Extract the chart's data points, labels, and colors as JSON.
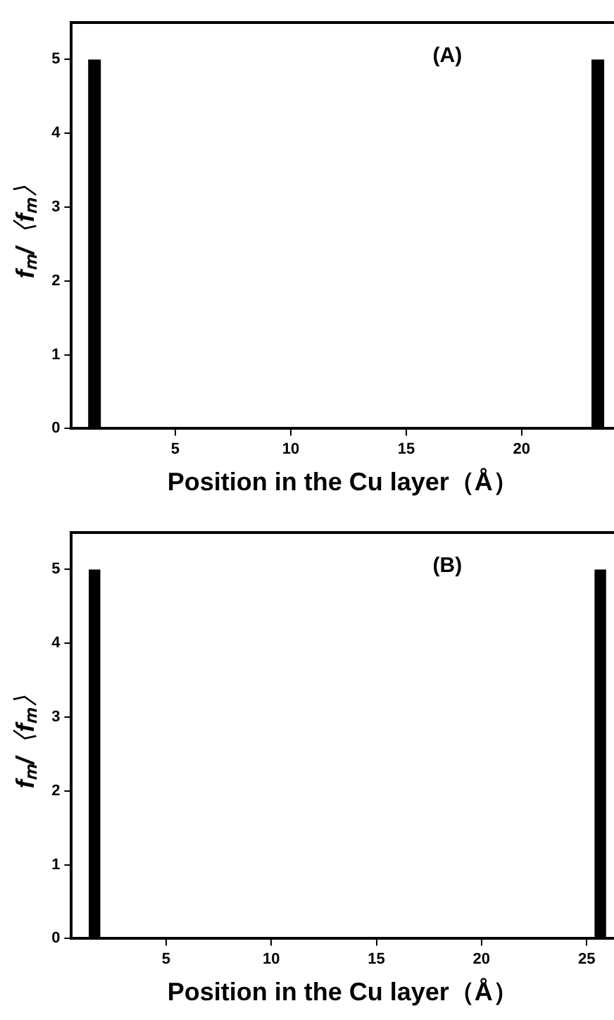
{
  "chart_data": [
    {
      "type": "bar",
      "x": [
        1.5,
        23.3
      ],
      "values": [
        5,
        5
      ],
      "color": "#000000",
      "xlim": [
        0.5,
        24
      ],
      "xticks": [
        5,
        10,
        15,
        20
      ],
      "ylim": [
        0,
        5.5
      ],
      "yticks": [
        0,
        1,
        2,
        3,
        4,
        5
      ],
      "xlabel": "Position in the Cu layer（Å）",
      "ylabel": "fₘ/〈fₘ〉",
      "annotations": [
        "(A)"
      ],
      "grid": false,
      "legend": false
    },
    {
      "type": "bar",
      "x": [
        1.6,
        25.65
      ],
      "values": [
        5,
        5
      ],
      "color": "#000000",
      "xlim": [
        0.5,
        26.3
      ],
      "xticks": [
        5,
        10,
        15,
        20,
        25
      ],
      "ylim": [
        0,
        5.5
      ],
      "yticks": [
        0,
        1,
        2,
        3,
        4,
        5
      ],
      "xlabel": "Position in the Cu layer（Å）",
      "ylabel": "fₘ/〈fₘ〉",
      "annotations": [
        "(B)"
      ],
      "grid": false,
      "legend": false
    }
  ]
}
